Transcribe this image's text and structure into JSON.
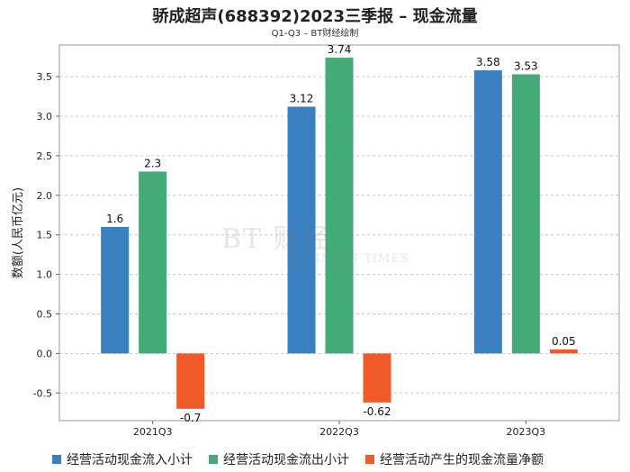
{
  "chart_data": {
    "type": "bar",
    "title": "骄成超声(688392)2023三季报 – 现金流量",
    "subtitle": "Q1-Q3 – BT财经绘制",
    "ylabel": "数额(人民币亿元)",
    "xlabel": "",
    "categories": [
      "2021Q3",
      "2022Q3",
      "2023Q3"
    ],
    "series": [
      {
        "name": "经营活动现金流入小计",
        "color": "#3a80c0",
        "values": [
          1.6,
          3.12,
          3.58
        ]
      },
      {
        "name": "经营活动现金流出小计",
        "color": "#44aa77",
        "values": [
          2.3,
          3.74,
          3.53
        ]
      },
      {
        "name": "经营活动产生的现金流量净额",
        "color": "#f05a28",
        "values": [
          -0.7,
          -0.62,
          0.05
        ]
      }
    ],
    "data_labels": [
      [
        "1.6",
        "3.12",
        "3.58"
      ],
      [
        "2.3",
        "3.74",
        "3.53"
      ],
      [
        "-0.7",
        "-0.62",
        "0.05"
      ]
    ],
    "yticks": [
      "-0.5",
      "0.0",
      "0.5",
      "1.0",
      "1.5",
      "2.0",
      "2.5",
      "3.0",
      "3.5"
    ],
    "ylim": [
      -0.85,
      3.9
    ],
    "grid": true,
    "legend": "bottom"
  },
  "watermark": {
    "main": "BT 财经",
    "sub": "BUSINESS TIMES"
  }
}
